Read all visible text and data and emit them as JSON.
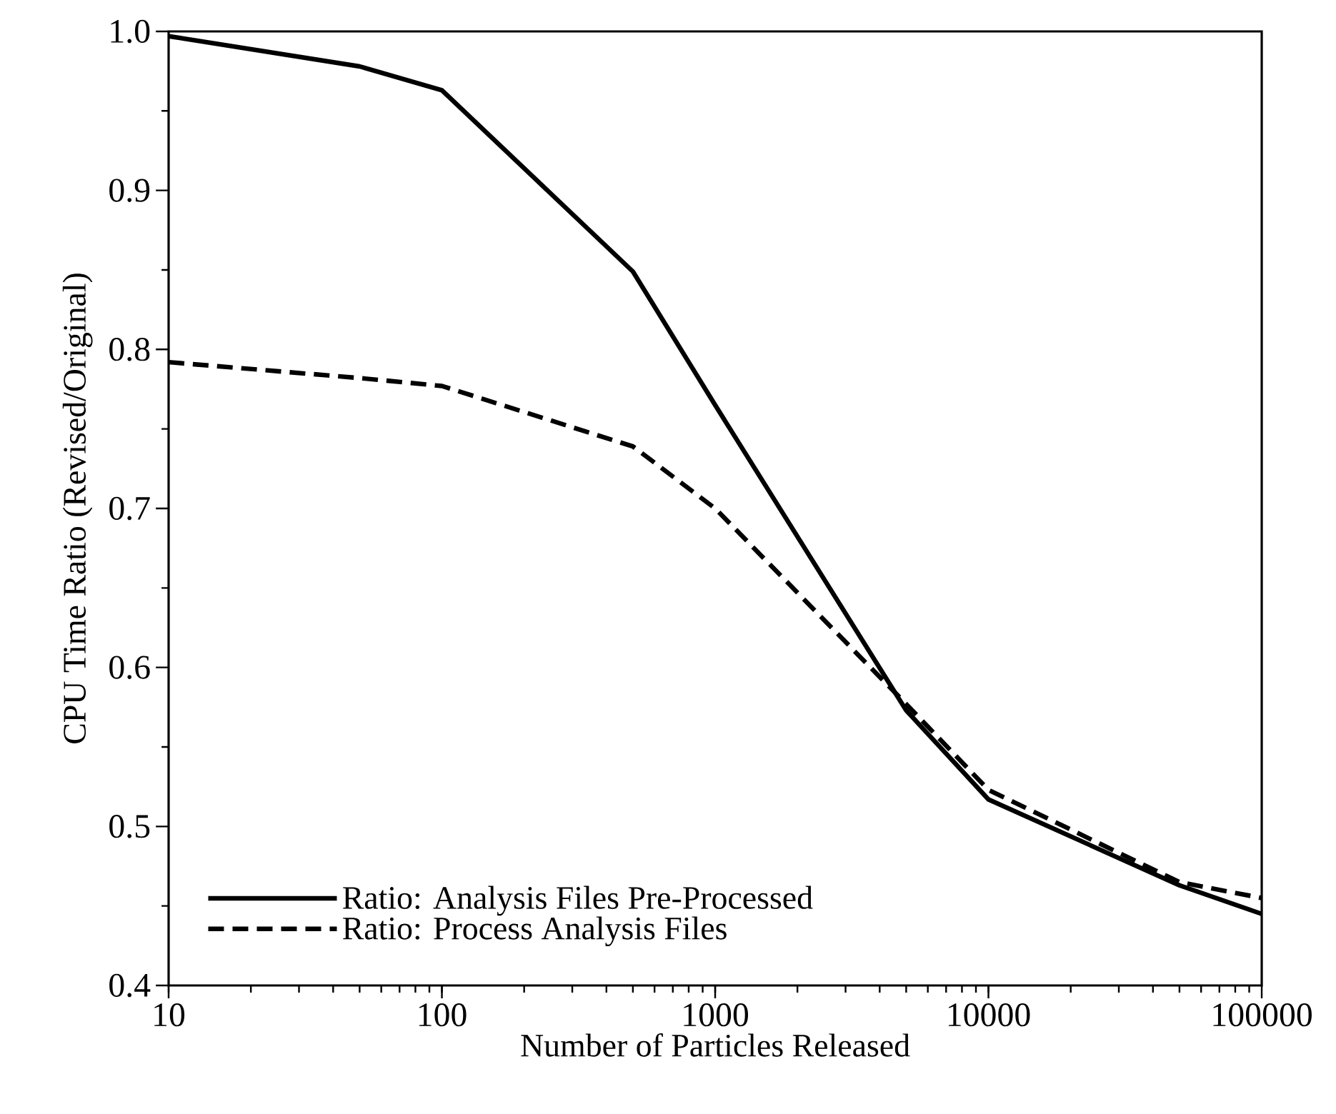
{
  "chart_data": {
    "type": "line",
    "xlabel": "Number of Particles Released",
    "ylabel": "CPU Time Ratio (Revised/Original)",
    "log": "x",
    "xlim": [
      10,
      100000
    ],
    "ylim": [
      0.4,
      1.0
    ],
    "xticks": [
      10,
      100,
      1000,
      10000,
      100000
    ],
    "yticks": [
      0.4,
      0.5,
      0.6,
      0.7,
      0.8,
      0.9,
      {
        "value": 1.0,
        "label": "1.0"
      }
    ],
    "legend": "bottom left",
    "grid": false,
    "series": [
      {
        "name": "Ratio:  Analysis Files Pre-Processed",
        "color": "#000000",
        "line_style": "solid",
        "x": [
          10,
          50,
          100,
          500,
          1000,
          5000,
          10000,
          50000,
          100000
        ],
        "values": [
          0.997,
          0.978,
          0.963,
          0.849,
          0.765,
          0.573,
          0.517,
          0.463,
          0.445
        ]
      },
      {
        "name": "Ratio:  Process Analysis Files",
        "color": "#000000",
        "line_style": "dashed",
        "x": [
          10,
          50,
          100,
          500,
          1000,
          5000,
          10000,
          50000,
          100000
        ],
        "values": [
          0.792,
          0.782,
          0.777,
          0.739,
          0.7,
          0.577,
          0.523,
          0.465,
          0.455
        ]
      }
    ]
  }
}
